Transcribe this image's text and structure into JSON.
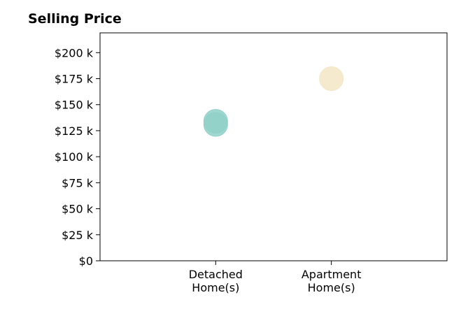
{
  "chart_data": {
    "type": "scatter",
    "title": "Selling Price",
    "xlabel": "",
    "ylabel": "",
    "categories": [
      [
        "Detached",
        "Home(s)"
      ],
      [
        "Apartment",
        "Home(s)"
      ]
    ],
    "series": [
      {
        "points": [
          {
            "category": 0,
            "y": 134000,
            "color": "#8fd1c8"
          },
          {
            "category": 0,
            "y": 131000,
            "color": "#8fd1c8"
          },
          {
            "category": 1,
            "y": 175000,
            "color": "#f3e6c6"
          }
        ]
      }
    ],
    "y_ticks": [
      {
        "value": 0,
        "label": "$0"
      },
      {
        "value": 25000,
        "label": "$25 k"
      },
      {
        "value": 50000,
        "label": "$50 k"
      },
      {
        "value": 75000,
        "label": "$75 k"
      },
      {
        "value": 100000,
        "label": "$100 k"
      },
      {
        "value": 125000,
        "label": "$125 k"
      },
      {
        "value": 150000,
        "label": "$150 k"
      },
      {
        "value": 175000,
        "label": "$175 k"
      },
      {
        "value": 200000,
        "label": "$200 k"
      }
    ],
    "ylim": [
      0,
      219000
    ],
    "xlim": [
      -1,
      2
    ],
    "grid": false,
    "legend": false
  }
}
